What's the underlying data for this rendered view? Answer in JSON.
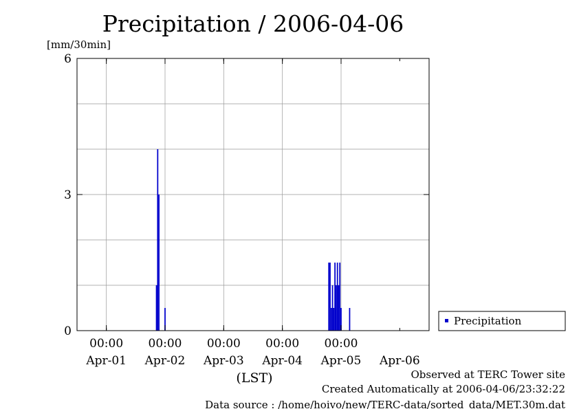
{
  "chart_data": {
    "type": "bar",
    "title": "Precipitation / 2006-04-06",
    "ylabel": "[mm/30min]",
    "xlabel": "(LST)",
    "ylim": [
      0,
      6
    ],
    "y_ticks": [
      0,
      3,
      6
    ],
    "x_time_labels": [
      "00:00",
      "00:00",
      "00:00",
      "00:00",
      "00:00"
    ],
    "x_date_labels": [
      "Apr-01",
      "Apr-02",
      "Apr-03",
      "Apr-04",
      "Apr-05",
      "Apr-06"
    ],
    "grid": true,
    "legend_position": "right",
    "series": [
      {
        "name": "Precipitation",
        "color": "#0000cc",
        "points": [
          {
            "t": "2006-04-01 20:30",
            "value": 1.0
          },
          {
            "t": "2006-04-01 21:00",
            "value": 4.0
          },
          {
            "t": "2006-04-01 21:30",
            "value": 3.0
          },
          {
            "t": "2006-04-02 00:00",
            "value": 0.5
          },
          {
            "t": "2006-04-04 19:00",
            "value": 1.5
          },
          {
            "t": "2006-04-04 19:30",
            "value": 1.5
          },
          {
            "t": "2006-04-04 20:00",
            "value": 0.5
          },
          {
            "t": "2006-04-04 20:30",
            "value": 1.0
          },
          {
            "t": "2006-04-04 21:00",
            "value": 0.5
          },
          {
            "t": "2006-04-04 21:30",
            "value": 1.5
          },
          {
            "t": "2006-04-04 22:00",
            "value": 1.0
          },
          {
            "t": "2006-04-04 22:30",
            "value": 1.5
          },
          {
            "t": "2006-04-04 23:00",
            "value": 1.0
          },
          {
            "t": "2006-04-04 23:30",
            "value": 1.5
          },
          {
            "t": "2006-04-05 00:00",
            "value": 0.5
          },
          {
            "t": "2006-04-05 03:30",
            "value": 0.5
          }
        ]
      }
    ]
  },
  "footer": {
    "observed": "Observed at TERC Tower site",
    "created": "Created Automatically at 2006-04-06/23:32:22",
    "source": "Data source : /home/hoivo/new/TERC-data/sorted_data/MET.30m.dat"
  }
}
